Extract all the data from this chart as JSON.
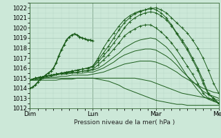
{
  "title": "",
  "xlabel": "Pression niveau de la mer( hPa )",
  "ylabel": "",
  "bg_color": "#cce8d8",
  "grid_color_major": "#a8c8b8",
  "grid_color_minor": "#b8d8c8",
  "line_color": "#1a5c1a",
  "ylim": [
    1012,
    1022.5
  ],
  "yticks": [
    1012,
    1013,
    1014,
    1015,
    1016,
    1017,
    1018,
    1019,
    1020,
    1021,
    1022
  ],
  "xtick_labels": [
    "Dim",
    "Lun",
    "Mar",
    "Mer"
  ],
  "xtick_positions": [
    0,
    48,
    96,
    144
  ],
  "x_total": 144,
  "lines": [
    {
      "x": [
        0,
        4,
        8,
        12,
        16,
        20,
        24,
        28,
        32,
        36,
        40,
        44,
        48,
        52,
        56,
        60,
        64,
        68,
        72,
        76,
        80,
        84,
        88,
        92,
        96,
        100,
        104,
        108,
        112,
        116,
        120,
        124,
        128,
        132,
        136,
        140,
        144
      ],
      "y": [
        1014.8,
        1015.0,
        1015.1,
        1015.2,
        1015.3,
        1015.4,
        1015.5,
        1015.6,
        1015.7,
        1015.8,
        1015.9,
        1016.0,
        1016.2,
        1017.0,
        1018.0,
        1018.8,
        1019.5,
        1020.2,
        1020.8,
        1021.2,
        1021.5,
        1021.7,
        1021.8,
        1021.9,
        1022.0,
        1021.8,
        1021.5,
        1021.0,
        1020.5,
        1020.0,
        1019.5,
        1018.8,
        1018.0,
        1017.0,
        1015.8,
        1014.5,
        1013.5
      ],
      "marker": true
    },
    {
      "x": [
        0,
        4,
        8,
        12,
        16,
        20,
        24,
        28,
        32,
        36,
        40,
        44,
        48,
        52,
        56,
        60,
        64,
        68,
        72,
        76,
        80,
        84,
        88,
        92,
        96,
        100,
        104,
        108,
        112,
        116,
        120,
        124,
        128,
        132,
        136,
        140,
        144
      ],
      "y": [
        1014.8,
        1015.0,
        1015.1,
        1015.2,
        1015.3,
        1015.4,
        1015.5,
        1015.6,
        1015.7,
        1015.8,
        1015.9,
        1016.0,
        1016.2,
        1016.8,
        1017.5,
        1018.2,
        1019.0,
        1019.8,
        1020.5,
        1021.0,
        1021.4,
        1021.6,
        1021.8,
        1022.0,
        1021.8,
        1021.5,
        1021.0,
        1020.3,
        1019.5,
        1018.8,
        1018.0,
        1017.0,
        1016.0,
        1014.8,
        1013.5,
        1013.0,
        1012.5
      ],
      "marker": true
    },
    {
      "x": [
        0,
        4,
        8,
        12,
        16,
        20,
        24,
        28,
        32,
        36,
        40,
        44,
        48,
        52,
        56,
        60,
        64,
        68,
        72,
        76,
        80,
        84,
        88,
        92,
        96,
        100,
        104,
        108,
        112,
        116,
        120,
        124,
        128,
        132,
        136,
        140,
        144
      ],
      "y": [
        1014.8,
        1015.0,
        1015.1,
        1015.2,
        1015.3,
        1015.4,
        1015.5,
        1015.6,
        1015.7,
        1015.8,
        1015.9,
        1016.0,
        1016.1,
        1016.6,
        1017.2,
        1017.8,
        1018.5,
        1019.2,
        1020.0,
        1020.6,
        1021.0,
        1021.3,
        1021.5,
        1021.6,
        1021.5,
        1021.2,
        1020.8,
        1020.2,
        1019.4,
        1018.6,
        1017.8,
        1016.8,
        1015.8,
        1014.5,
        1013.4,
        1013.0,
        1012.5
      ],
      "marker": true
    },
    {
      "x": [
        0,
        4,
        8,
        12,
        16,
        20,
        24,
        28,
        32,
        36,
        40,
        44,
        48,
        52,
        56,
        60,
        64,
        68,
        72,
        76,
        80,
        84,
        88,
        92,
        96,
        100,
        104,
        108,
        112,
        116,
        120,
        124,
        128,
        132,
        136,
        140,
        144
      ],
      "y": [
        1014.8,
        1015.0,
        1015.1,
        1015.2,
        1015.3,
        1015.4,
        1015.5,
        1015.5,
        1015.6,
        1015.6,
        1015.7,
        1015.8,
        1015.9,
        1016.3,
        1016.8,
        1017.3,
        1017.9,
        1018.5,
        1019.2,
        1019.6,
        1019.9,
        1020.2,
        1020.3,
        1020.3,
        1020.0,
        1019.6,
        1019.1,
        1018.5,
        1017.8,
        1017.0,
        1016.2,
        1015.4,
        1014.5,
        1013.5,
        1013.0,
        1012.8,
        1012.5
      ],
      "marker": true
    },
    {
      "x": [
        0,
        4,
        8,
        12,
        16,
        20,
        24,
        28,
        32,
        36,
        40,
        44,
        48,
        52,
        56,
        60,
        64,
        68,
        72,
        76,
        80,
        84,
        88,
        92,
        96,
        100,
        104,
        108,
        112,
        116,
        120,
        124,
        128,
        132,
        136,
        140,
        144
      ],
      "y": [
        1014.8,
        1015.0,
        1015.1,
        1015.2,
        1015.3,
        1015.4,
        1015.5,
        1015.5,
        1015.6,
        1015.6,
        1015.7,
        1015.7,
        1015.8,
        1016.0,
        1016.3,
        1016.7,
        1017.1,
        1017.5,
        1018.0,
        1018.3,
        1018.6,
        1018.8,
        1018.9,
        1019.0,
        1018.9,
        1018.5,
        1018.1,
        1017.5,
        1016.8,
        1016.0,
        1015.2,
        1014.5,
        1013.8,
        1013.2,
        1012.9,
        1012.7,
        1012.5
      ],
      "marker": false
    },
    {
      "x": [
        0,
        4,
        8,
        12,
        16,
        20,
        24,
        28,
        32,
        36,
        40,
        44,
        48,
        52,
        56,
        60,
        64,
        68,
        72,
        76,
        80,
        84,
        88,
        92,
        96,
        100,
        104,
        108,
        112,
        116,
        120,
        124,
        128,
        132,
        136,
        140,
        144
      ],
      "y": [
        1014.8,
        1015.0,
        1015.0,
        1015.1,
        1015.2,
        1015.3,
        1015.4,
        1015.4,
        1015.5,
        1015.5,
        1015.5,
        1015.6,
        1015.6,
        1015.8,
        1016.0,
        1016.3,
        1016.6,
        1017.0,
        1017.3,
        1017.5,
        1017.7,
        1017.8,
        1017.9,
        1017.9,
        1017.8,
        1017.5,
        1017.2,
        1016.8,
        1016.3,
        1015.7,
        1015.2,
        1014.7,
        1014.2,
        1013.7,
        1013.4,
        1013.2,
        1013.0
      ],
      "marker": false
    },
    {
      "x": [
        0,
        4,
        8,
        12,
        16,
        20,
        24,
        28,
        32,
        36,
        40,
        44,
        48,
        52,
        56,
        60,
        64,
        68,
        72,
        76,
        80,
        84,
        88,
        92,
        96,
        100,
        104,
        108,
        112,
        116,
        120,
        124,
        128,
        132,
        136,
        140,
        144
      ],
      "y": [
        1014.8,
        1014.9,
        1015.0,
        1015.0,
        1015.1,
        1015.1,
        1015.2,
        1015.2,
        1015.3,
        1015.3,
        1015.3,
        1015.3,
        1015.4,
        1015.5,
        1015.6,
        1015.8,
        1016.0,
        1016.2,
        1016.4,
        1016.5,
        1016.6,
        1016.7,
        1016.7,
        1016.7,
        1016.6,
        1016.4,
        1016.2,
        1015.9,
        1015.6,
        1015.2,
        1014.9,
        1014.6,
        1014.3,
        1014.0,
        1013.8,
        1013.6,
        1013.5
      ],
      "marker": false
    },
    {
      "x": [
        0,
        4,
        8,
        12,
        16,
        20,
        24,
        28,
        32,
        36,
        40,
        44,
        48,
        52,
        56,
        60,
        64,
        68,
        72,
        76,
        80,
        84,
        88,
        92,
        96,
        100,
        104,
        108,
        112,
        116,
        120,
        124,
        128,
        132,
        136,
        140,
        144
      ],
      "y": [
        1014.8,
        1014.8,
        1014.9,
        1015.0,
        1015.0,
        1015.0,
        1015.0,
        1015.0,
        1015.0,
        1015.0,
        1015.0,
        1015.0,
        1015.0,
        1015.0,
        1015.0,
        1015.0,
        1015.0,
        1015.0,
        1015.0,
        1015.0,
        1015.0,
        1014.9,
        1014.8,
        1014.7,
        1014.5,
        1014.3,
        1014.1,
        1013.9,
        1013.7,
        1013.5,
        1013.4,
        1013.3,
        1013.2,
        1013.1,
        1013.0,
        1012.9,
        1012.8
      ],
      "marker": false
    },
    {
      "x": [
        0,
        4,
        8,
        12,
        16,
        20,
        24,
        28,
        32,
        36,
        40,
        44,
        48,
        52,
        56,
        60,
        64,
        68,
        72,
        76,
        80,
        84,
        88,
        92,
        96,
        100,
        104,
        108,
        112,
        116,
        120,
        124,
        128,
        132,
        136,
        140,
        144
      ],
      "y": [
        1014.8,
        1014.8,
        1014.8,
        1014.8,
        1014.8,
        1014.8,
        1014.9,
        1014.9,
        1014.9,
        1015.0,
        1015.0,
        1015.0,
        1015.0,
        1014.9,
        1014.8,
        1014.7,
        1014.5,
        1014.3,
        1014.0,
        1013.8,
        1013.6,
        1013.4,
        1013.2,
        1013.0,
        1012.8,
        1012.7,
        1012.6,
        1012.5,
        1012.4,
        1012.4,
        1012.3,
        1012.3,
        1012.3,
        1012.3,
        1012.3,
        1012.3,
        1012.3
      ],
      "marker": false
    }
  ],
  "observed_x": [
    0,
    2,
    4,
    6,
    8,
    10,
    12,
    14,
    16,
    18,
    20,
    22,
    24,
    26,
    28,
    30,
    32,
    34,
    36,
    38,
    40,
    42,
    44,
    46,
    48
  ],
  "observed_y": [
    1014.0,
    1014.1,
    1014.3,
    1014.6,
    1014.9,
    1015.1,
    1015.3,
    1015.5,
    1015.7,
    1016.0,
    1016.5,
    1017.2,
    1017.8,
    1018.3,
    1018.8,
    1019.1,
    1019.3,
    1019.4,
    1019.3,
    1019.1,
    1019.0,
    1018.9,
    1018.8,
    1018.8,
    1018.7
  ]
}
